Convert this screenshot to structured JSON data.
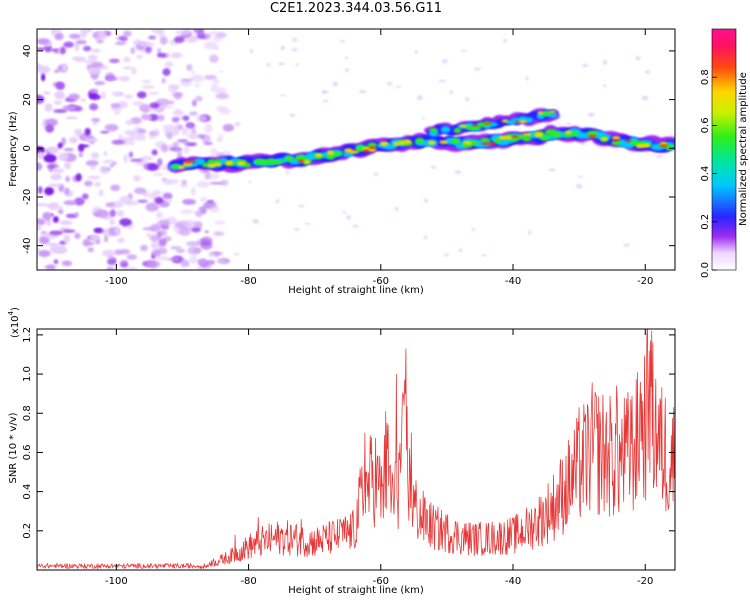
{
  "title": "C2E1.2023.344.03.56.G11",
  "chart_data": [
    {
      "type": "heatmap",
      "title": "",
      "xlabel": "Height of straight line (km)",
      "ylabel": "Frequency (Hz)",
      "xlim": [
        -112,
        -15.5
      ],
      "ylim": [
        -50,
        49
      ],
      "x_ticks": [
        "-100",
        "-80",
        "-60",
        "-40",
        "-20"
      ],
      "x_tick_values": [
        -100,
        -80,
        -60,
        -40,
        -20
      ],
      "y_ticks": [
        "-40",
        "-20",
        "0",
        "20",
        "40"
      ],
      "y_tick_values": [
        -40,
        -20,
        0,
        20,
        40
      ],
      "colorbar": {
        "label": "Normalized spectral amplitude",
        "range": [
          0,
          1
        ],
        "ticks": [
          "0.0",
          "0.2",
          "0.4",
          "0.6",
          "0.8"
        ],
        "tick_values": [
          0.0,
          0.2,
          0.4,
          0.6,
          0.8
        ],
        "colormap": "rainbow (white-purple-blue-cyan-green-yellow-orange-red-magenta)"
      },
      "ridges": [
        {
          "x": [
            -91,
            -88,
            -85,
            -82,
            -79,
            -76,
            -72,
            -68,
            -64,
            -60,
            -56,
            -52,
            -48,
            -44,
            -40,
            -36,
            -32,
            -28,
            -24,
            -20,
            -16
          ],
          "y": [
            -7,
            -6,
            -6.5,
            -6,
            -6,
            -5,
            -5,
            -3,
            -1,
            1,
            2.5,
            3,
            2,
            2.5,
            4,
            5,
            6.5,
            5.5,
            3,
            1.5,
            1
          ]
        },
        {
          "x": [
            -52,
            -48,
            -44,
            -40,
            -37,
            -34
          ],
          "y": [
            7,
            8,
            10,
            11,
            13,
            14
          ]
        }
      ],
      "noise_region": {
        "x_range": [
          -112,
          -82
        ],
        "y_range": [
          -50,
          49
        ]
      }
    },
    {
      "type": "line",
      "title": "",
      "xlabel": "Height of straight line (km)",
      "ylabel": "SNR (10 * v/v)",
      "y_multiplier_label": "(x10",
      "y_multiplier_exp": "4",
      "xlim": [
        -112,
        -15.5
      ],
      "ylim": [
        0,
        12300
      ],
      "x_ticks": [
        "-100",
        "-80",
        "-60",
        "-40",
        "-20"
      ],
      "x_tick_values": [
        -100,
        -80,
        -60,
        -40,
        -20
      ],
      "y_ticks": [
        "0.2",
        "0.4",
        "0.6",
        "0.8",
        "1.0",
        "1.2"
      ],
      "y_tick_values": [
        2000,
        4000,
        6000,
        8000,
        10000,
        12000
      ],
      "series_color": "#e83535",
      "envelope": {
        "x": [
          -112,
          -90,
          -85,
          -82,
          -80,
          -78,
          -75,
          -72,
          -70,
          -68,
          -66,
          -64,
          -63,
          -62,
          -61,
          -60,
          -59,
          -58,
          -57,
          -56.2,
          -55.5,
          -54,
          -52,
          -50,
          -48,
          -46,
          -44,
          -42,
          -40,
          -38,
          -36,
          -34,
          -32,
          -30,
          -28,
          -26,
          -24,
          -22,
          -21,
          -20,
          -19.5,
          -19,
          -18.5,
          -18,
          -17,
          -16,
          -15.5
        ],
        "y": [
          200,
          300,
          500,
          1000,
          1500,
          1800,
          2100,
          1900,
          1800,
          2000,
          2200,
          2500,
          4500,
          5200,
          6200,
          4800,
          6500,
          4200,
          6500,
          8400,
          4500,
          3400,
          2700,
          2400,
          2100,
          2000,
          2000,
          2100,
          2200,
          2600,
          3200,
          4000,
          5200,
          6500,
          7700,
          7400,
          7000,
          7600,
          8300,
          9500,
          10500,
          9400,
          9500,
          8100,
          7300,
          7100,
          7300
        ]
      },
      "peaks": {
        "x": [
          -82,
          -78.5,
          -75.5,
          -72,
          -68.5,
          -66,
          -62.4,
          -60.6,
          -59.3,
          -58.6,
          -57.6,
          -56.8,
          -56.2,
          -55.4,
          -45.5,
          -38,
          -30,
          -27.5,
          -24.3,
          -22.2,
          -20.7,
          -19.4,
          -19.0,
          -17
        ],
        "y": [
          1800,
          2700,
          2300,
          2600,
          2000,
          2400,
          7000,
          5100,
          8100,
          5300,
          10000,
          7400,
          11300,
          7000,
          2300,
          2800,
          8300,
          8900,
          9400,
          8700,
          9600,
          11200,
          12200,
          8800
        ]
      }
    }
  ]
}
